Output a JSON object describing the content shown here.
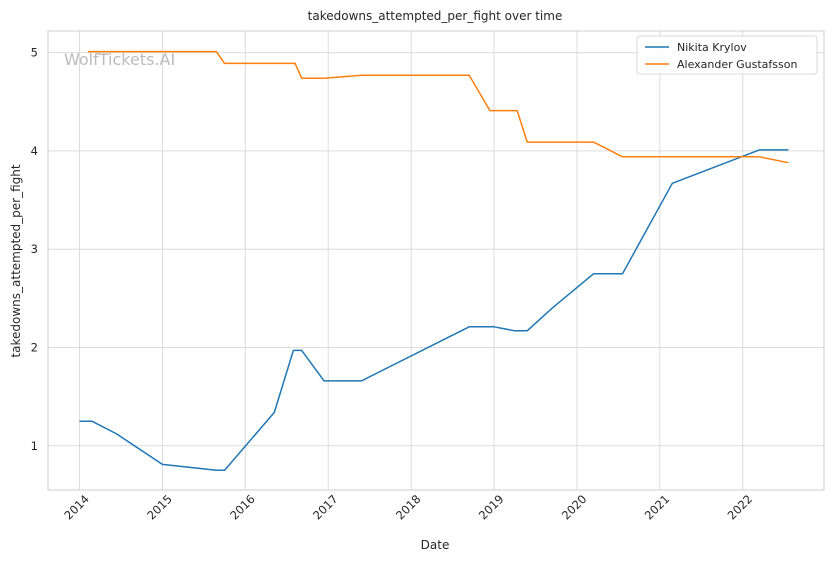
{
  "chart_data": {
    "type": "line",
    "title": "takedowns_attempted_per_fight over time",
    "xlabel": "Date",
    "ylabel": "takedowns_attempted_per_fight",
    "watermark": "WolfTickets.AI",
    "xlim": [
      2013.62,
      2022.98
    ],
    "ylim": [
      0.55,
      5.22
    ],
    "x_ticks": [
      2014,
      2015,
      2016,
      2017,
      2018,
      2019,
      2020,
      2021,
      2022
    ],
    "x_tick_labels": [
      "2014",
      "2015",
      "2016",
      "2017",
      "2018",
      "2019",
      "2020",
      "2021",
      "2022"
    ],
    "y_ticks": [
      1,
      2,
      3,
      4,
      5
    ],
    "y_tick_labels": [
      "1",
      "2",
      "3",
      "4",
      "5"
    ],
    "grid": true,
    "legend_position": "top-right",
    "series": [
      {
        "name": "Nikita Krylov",
        "color": "#1f77b4",
        "x": [
          2014.0,
          2014.15,
          2014.45,
          2015.0,
          2015.65,
          2015.75,
          2016.35,
          2016.58,
          2016.68,
          2016.95,
          2017.4,
          2018.7,
          2019.0,
          2019.25,
          2019.4,
          2019.7,
          2020.2,
          2020.55,
          2021.15,
          2022.2,
          2022.55
        ],
        "y": [
          1.25,
          1.25,
          1.12,
          0.81,
          0.75,
          0.75,
          1.34,
          1.97,
          1.97,
          1.66,
          1.66,
          2.21,
          2.21,
          2.17,
          2.17,
          2.4,
          2.75,
          2.75,
          3.67,
          4.01,
          4.01
        ]
      },
      {
        "name": "Alexander Gustafsson",
        "color": "#ff7f0e",
        "x": [
          2014.1,
          2015.65,
          2015.75,
          2016.6,
          2016.68,
          2016.95,
          2017.4,
          2018.7,
          2018.95,
          2019.28,
          2019.4,
          2020.2,
          2020.55,
          2022.2,
          2022.55
        ],
        "y": [
          5.01,
          5.01,
          4.89,
          4.89,
          4.74,
          4.74,
          4.77,
          4.77,
          4.41,
          4.41,
          4.09,
          4.09,
          3.94,
          3.94,
          3.88
        ]
      }
    ]
  }
}
